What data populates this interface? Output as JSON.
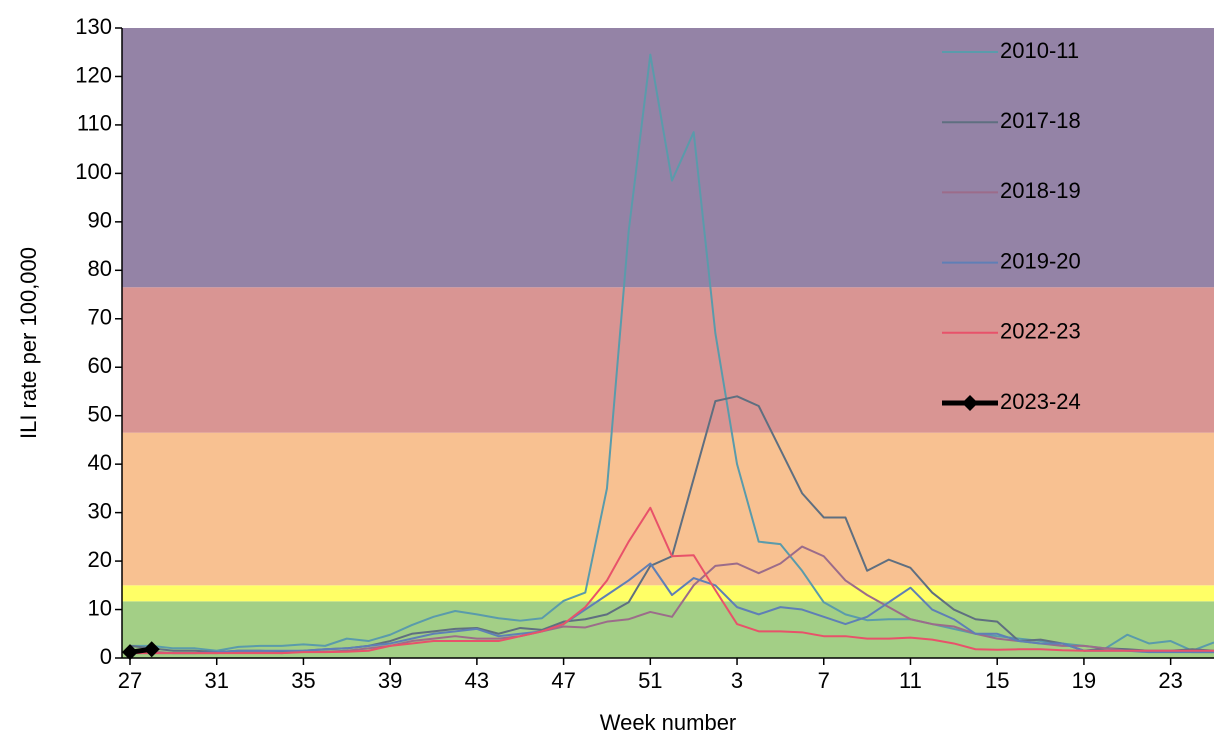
{
  "chart_data": {
    "type": "line",
    "y_label": "ILI rate per 100,000",
    "x_label": "Week number",
    "categories": [
      27,
      null,
      null,
      null,
      31,
      null,
      null,
      null,
      35,
      null,
      null,
      null,
      39,
      null,
      null,
      null,
      43,
      null,
      null,
      null,
      47,
      null,
      null,
      null,
      51,
      null,
      null,
      null,
      3,
      null,
      null,
      null,
      7,
      null,
      null,
      null,
      11,
      null,
      null,
      null,
      15,
      null,
      null,
      null,
      19,
      null,
      null,
      null,
      23,
      null,
      null
    ],
    "ylim": [
      0,
      130
    ],
    "yticks": [
      0,
      10,
      20,
      30,
      40,
      50,
      60,
      70,
      80,
      90,
      100,
      110,
      120,
      130
    ],
    "legend": "upper right",
    "bands": [
      {
        "from": 0,
        "to": 11.7,
        "color": "#a3cf86"
      },
      {
        "from": 11.7,
        "to": 15,
        "color": "#ffff66"
      },
      {
        "from": 15,
        "to": 46.5,
        "color": "#f8c191"
      },
      {
        "from": 46.5,
        "to": 76.5,
        "color": "#d99593"
      },
      {
        "from": 76.5,
        "to": 130,
        "color": "#9483a6"
      }
    ],
    "series": [
      {
        "name": "2010-11",
        "color": "#5a9bab",
        "values": [
          2.5,
          2.5,
          2,
          2,
          1.5,
          2.3,
          2.5,
          2.5,
          2.8,
          2.5,
          4,
          3.5,
          4.8,
          6.8,
          8.5,
          9.7,
          9,
          8.2,
          7.7,
          8.2,
          11.8,
          13.5,
          35,
          88,
          124.5,
          98.5,
          108.5,
          67,
          40,
          24,
          23.5,
          18,
          11.5,
          9,
          7.8,
          8,
          8,
          7,
          6,
          5,
          4.5,
          4,
          3.5,
          3,
          2.5,
          2,
          4.8,
          3,
          3.5,
          1.5,
          3.2
        ]
      },
      {
        "name": "2017-18",
        "color": "#5f6f80",
        "values": [
          2.5,
          2,
          1.5,
          1.5,
          1.2,
          1.5,
          1.5,
          1.3,
          1.5,
          1.8,
          2,
          2.5,
          3.5,
          5,
          5.5,
          6,
          6.2,
          5,
          6.2,
          5.8,
          7.5,
          8,
          9,
          11.5,
          19,
          21,
          37,
          53,
          54,
          52,
          43,
          34,
          29,
          29,
          18,
          20.3,
          18.6,
          13.5,
          10,
          8,
          7.5,
          3.5,
          3.8,
          3,
          1.5,
          2,
          1.8,
          1.5,
          1.5,
          1.8,
          1.5
        ]
      },
      {
        "name": "2018-19",
        "color": "#9c6c8a",
        "values": [
          1.5,
          1.3,
          1,
          1,
          1,
          1.2,
          1.2,
          1,
          1.3,
          1.3,
          1.5,
          2,
          2.5,
          3.5,
          4,
          4.5,
          4,
          4,
          4.5,
          5.5,
          6.5,
          6.3,
          7.5,
          8,
          9.5,
          8.5,
          15,
          19,
          19.5,
          17.5,
          19.5,
          23,
          21,
          16,
          13,
          10.5,
          8,
          7,
          6.5,
          5,
          4,
          3.5,
          3,
          2.5,
          2.5,
          2,
          1.5,
          1.5,
          1.5,
          1.2,
          1.2
        ]
      },
      {
        "name": "2019-20",
        "color": "#5f7fb6",
        "values": [
          1,
          1,
          1,
          1,
          1.2,
          1.5,
          1.5,
          1.5,
          1.5,
          1.8,
          2,
          2.5,
          3,
          4,
          5,
          5.5,
          6,
          4.5,
          5,
          5.5,
          7,
          10,
          13,
          16,
          19.5,
          13,
          16.5,
          15,
          10.5,
          9,
          10.5,
          10,
          8.5,
          7,
          8.5,
          11.5,
          14.5,
          10,
          8,
          5,
          5,
          3.5,
          3,
          3,
          1.5,
          1.5,
          1.5,
          1.2,
          1.2,
          1.2,
          1.2
        ]
      },
      {
        "name": "2022-23",
        "color": "#e8526a",
        "values": [
          1,
          1,
          1,
          1,
          1,
          1,
          1,
          1,
          1.2,
          1.2,
          1.3,
          1.5,
          2.5,
          3,
          3.5,
          3.5,
          3.5,
          3.5,
          4.5,
          5.5,
          7,
          10.5,
          16,
          24,
          31,
          21,
          21.2,
          14,
          7,
          5.5,
          5.5,
          5.3,
          4.5,
          4.5,
          4,
          4,
          4.2,
          3.8,
          3,
          1.8,
          1.7,
          1.8,
          1.8,
          1.6,
          1.5,
          1.5,
          1.5,
          1.5,
          1.5,
          1.5,
          1.5
        ]
      },
      {
        "name": "2023-24",
        "color": "#000000",
        "marker": "diamond",
        "values": [
          1.2,
          1.8,
          null,
          null,
          null,
          null,
          null,
          null,
          null,
          null,
          null,
          null,
          null,
          null,
          null,
          null,
          null,
          null,
          null,
          null,
          null,
          null,
          null,
          null,
          null,
          null,
          null,
          null,
          null,
          null,
          null,
          null,
          null,
          null,
          null,
          null,
          null,
          null,
          null,
          null,
          null,
          null,
          null,
          null,
          null,
          null,
          null,
          null,
          null,
          null,
          null
        ]
      }
    ]
  }
}
